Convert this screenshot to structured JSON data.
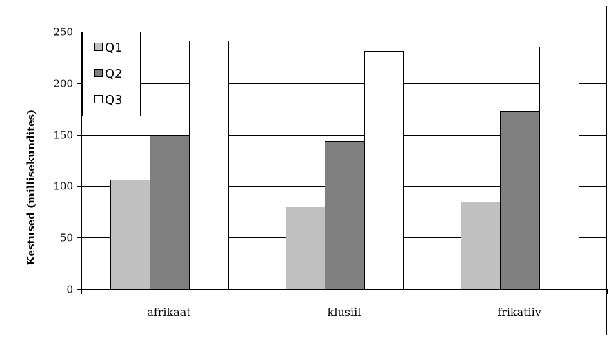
{
  "chart_data": {
    "type": "bar",
    "title": "",
    "xlabel": "",
    "ylabel": "Kestused (millisekundites)",
    "ylim": [
      0,
      250
    ],
    "yticks": [
      0,
      50,
      100,
      150,
      200,
      250
    ],
    "grid": true,
    "legend_position": "top-left",
    "categories": [
      "afrikaat",
      "klusiil",
      "frikatiiv"
    ],
    "series": [
      {
        "name": "Q1",
        "color": "#c0c0c0",
        "values": [
          106,
          80,
          85
        ]
      },
      {
        "name": "Q2",
        "color": "#808080",
        "values": [
          149,
          144,
          173
        ]
      },
      {
        "name": "Q3",
        "color": "#ffffff",
        "values": [
          241,
          231,
          235
        ]
      }
    ]
  }
}
